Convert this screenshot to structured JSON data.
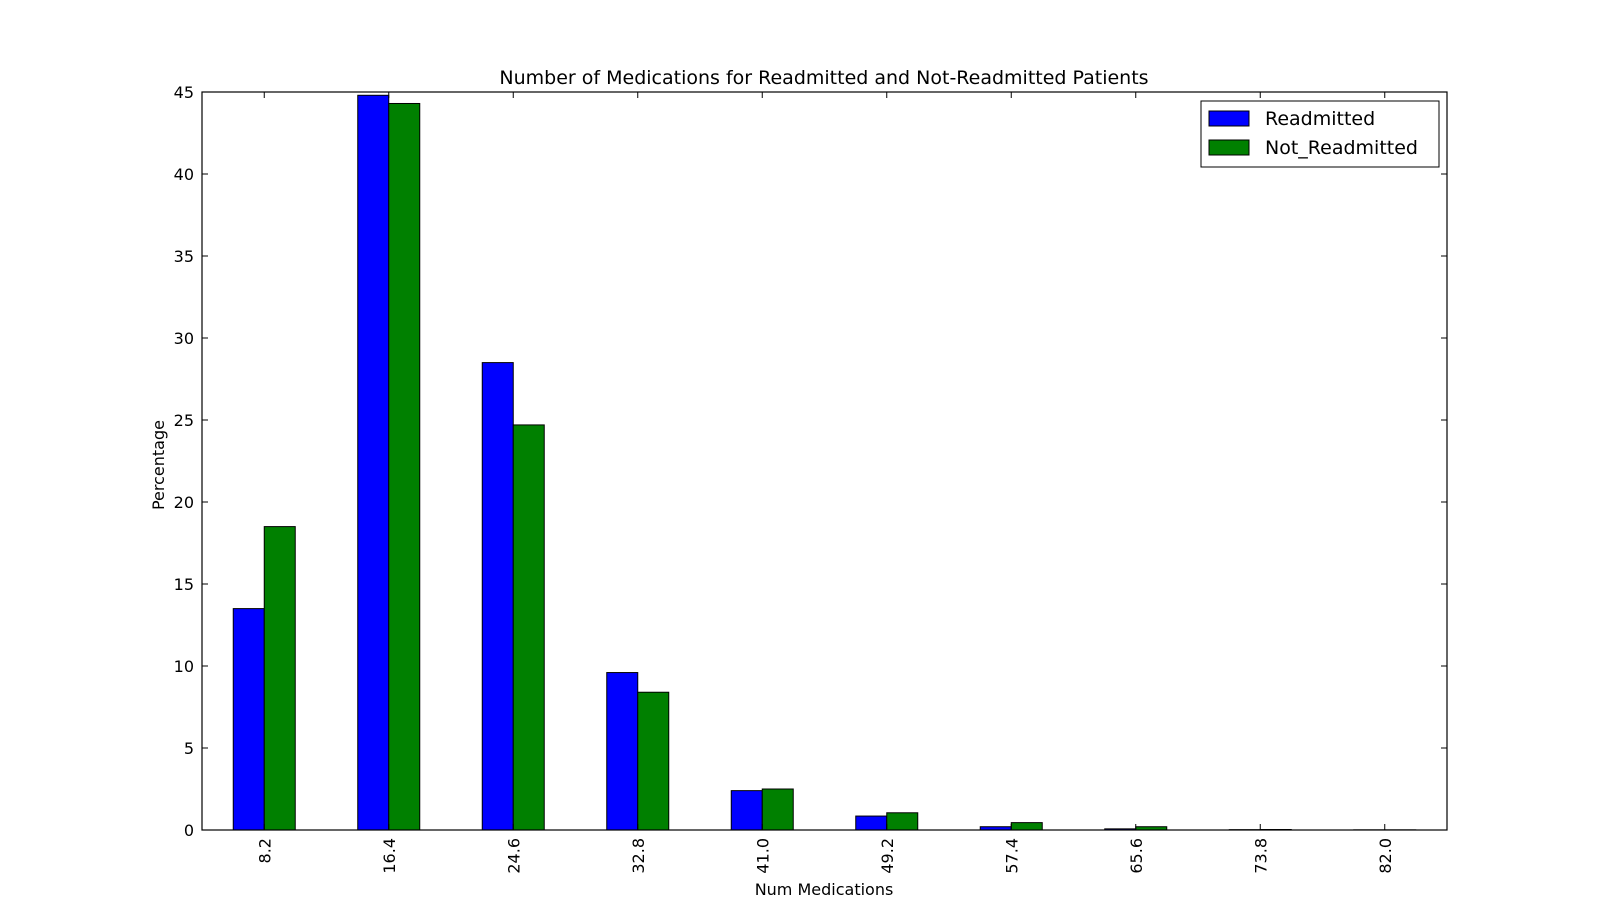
{
  "chart_data": {
    "type": "bar",
    "title": "Number of Medications for Readmitted and Not-Readmitted Patients",
    "xlabel": "Num Medications",
    "ylabel": "Percentage",
    "categories": [
      "8.2",
      "16.4",
      "24.6",
      "32.8",
      "41.0",
      "49.2",
      "57.4",
      "65.6",
      "73.8",
      "82.0"
    ],
    "series": [
      {
        "name": "Readmitted",
        "color": "#0000ff",
        "values": [
          13.5,
          44.8,
          28.5,
          9.6,
          2.4,
          0.85,
          0.2,
          0.07,
          0.02,
          0.01
        ]
      },
      {
        "name": "Not_Readmitted",
        "color": "#008000",
        "values": [
          18.5,
          44.3,
          24.7,
          8.4,
          2.5,
          1.05,
          0.45,
          0.2,
          0.03,
          0.01
        ]
      }
    ],
    "ylim": [
      0,
      45
    ],
    "yticks": [
      "0",
      "5",
      "10",
      "15",
      "20",
      "25",
      "30",
      "35",
      "40",
      "45"
    ],
    "grid": false,
    "legend_position": "top-right"
  }
}
